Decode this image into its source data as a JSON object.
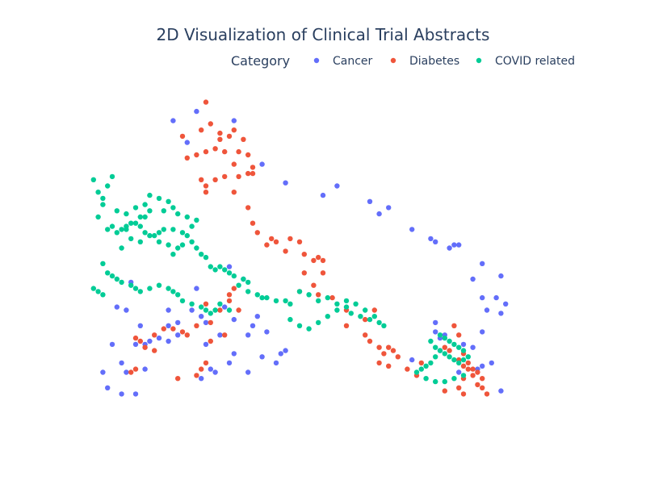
{
  "chart_data": {
    "type": "scatter",
    "title": "2D Visualization of Clinical Trial Abstracts",
    "legend": {
      "title": "Category",
      "placement": "top-right",
      "orientation": "horizontal"
    },
    "grid": false,
    "axes_visible": false,
    "xlim": [
      0,
      100
    ],
    "ylim": [
      0,
      100
    ],
    "series": [
      {
        "name": "Cancer",
        "color": "#636efa",
        "points": [
          [
            23,
            94
          ],
          [
            18,
            91
          ],
          [
            31,
            91
          ],
          [
            21,
            84
          ],
          [
            37,
            77
          ],
          [
            53,
            70
          ],
          [
            42,
            71
          ],
          [
            50,
            67
          ],
          [
            60,
            65
          ],
          [
            64,
            63
          ],
          [
            62,
            61
          ],
          [
            69,
            56
          ],
          [
            73,
            53
          ],
          [
            74,
            52
          ],
          [
            77,
            50
          ],
          [
            79,
            51
          ],
          [
            78,
            51
          ],
          [
            84,
            45
          ],
          [
            82,
            40
          ],
          [
            88,
            41
          ],
          [
            84,
            34
          ],
          [
            87,
            34
          ],
          [
            89,
            32
          ],
          [
            85,
            30
          ],
          [
            88,
            29
          ],
          [
            84,
            23
          ],
          [
            9,
            39
          ],
          [
            6,
            31
          ],
          [
            8,
            30
          ],
          [
            11,
            25
          ],
          [
            10,
            19
          ],
          [
            5,
            19
          ],
          [
            3,
            10
          ],
          [
            4,
            5
          ],
          [
            7,
            3
          ],
          [
            10,
            3
          ],
          [
            12,
            11
          ],
          [
            7,
            13
          ],
          [
            8,
            10
          ],
          [
            12,
            19
          ],
          [
            13,
            20
          ],
          [
            15,
            21
          ],
          [
            17,
            20
          ],
          [
            19,
            22
          ],
          [
            17,
            25
          ],
          [
            19,
            26
          ],
          [
            24,
            28
          ],
          [
            25,
            26
          ],
          [
            17,
            30
          ],
          [
            30,
            44
          ],
          [
            33,
            40
          ],
          [
            23,
            37
          ],
          [
            22,
            30
          ],
          [
            29,
            31
          ],
          [
            31,
            27
          ],
          [
            36,
            28
          ],
          [
            28,
            22
          ],
          [
            34,
            22
          ],
          [
            35,
            25
          ],
          [
            38,
            23
          ],
          [
            25,
            19
          ],
          [
            31,
            16
          ],
          [
            37,
            15
          ],
          [
            40,
            13
          ],
          [
            41,
            16
          ],
          [
            42,
            17
          ],
          [
            30,
            13
          ],
          [
            34,
            10
          ],
          [
            24,
            8
          ],
          [
            26,
            11
          ],
          [
            27,
            10
          ],
          [
            69,
            14
          ],
          [
            74,
            23
          ],
          [
            75,
            21
          ],
          [
            75,
            17
          ],
          [
            74,
            26
          ],
          [
            76,
            22
          ],
          [
            79,
            10
          ],
          [
            80,
            19
          ],
          [
            82,
            18
          ],
          [
            84,
            12
          ],
          [
            83,
            11
          ],
          [
            86,
            13
          ],
          [
            88,
            4
          ]
        ]
      },
      {
        "name": "Diabetes",
        "color": "#ef553b",
        "points": [
          [
            25,
            97
          ],
          [
            26,
            90
          ],
          [
            24,
            88
          ],
          [
            20,
            86
          ],
          [
            28,
            87
          ],
          [
            31,
            88
          ],
          [
            30,
            86
          ],
          [
            28,
            85
          ],
          [
            29,
            81
          ],
          [
            27,
            82
          ],
          [
            21,
            79
          ],
          [
            23,
            80
          ],
          [
            25,
            81
          ],
          [
            33,
            85
          ],
          [
            32,
            81
          ],
          [
            34,
            80
          ],
          [
            31,
            77
          ],
          [
            35,
            76
          ],
          [
            34,
            74
          ],
          [
            32,
            73
          ],
          [
            35,
            74
          ],
          [
            29,
            73
          ],
          [
            27,
            72
          ],
          [
            24,
            72
          ],
          [
            25,
            68
          ],
          [
            25,
            70
          ],
          [
            31,
            68
          ],
          [
            34,
            63
          ],
          [
            35,
            58
          ],
          [
            36,
            55
          ],
          [
            39,
            53
          ],
          [
            40,
            52
          ],
          [
            38,
            51
          ],
          [
            43,
            53
          ],
          [
            45,
            52
          ],
          [
            42,
            49
          ],
          [
            46,
            48
          ],
          [
            49,
            47
          ],
          [
            50,
            46
          ],
          [
            48,
            46
          ],
          [
            50,
            42
          ],
          [
            46,
            42
          ],
          [
            48,
            38
          ],
          [
            45,
            36
          ],
          [
            49,
            35
          ],
          [
            52,
            34
          ],
          [
            55,
            30
          ],
          [
            55,
            25
          ],
          [
            59,
            27
          ],
          [
            61,
            30
          ],
          [
            59,
            22
          ],
          [
            60,
            20
          ],
          [
            62,
            18
          ],
          [
            64,
            18
          ],
          [
            65,
            17
          ],
          [
            63,
            16
          ],
          [
            66,
            15
          ],
          [
            62,
            13
          ],
          [
            64,
            12
          ],
          [
            68,
            11
          ],
          [
            70,
            9
          ],
          [
            71,
            13
          ],
          [
            25,
            32
          ],
          [
            30,
            35
          ],
          [
            31,
            37
          ],
          [
            30,
            33
          ],
          [
            32,
            30
          ],
          [
            28,
            30
          ],
          [
            26,
            26
          ],
          [
            23,
            25
          ],
          [
            21,
            22
          ],
          [
            20,
            23
          ],
          [
            18,
            24
          ],
          [
            14,
            17
          ],
          [
            12,
            18
          ],
          [
            11,
            20
          ],
          [
            10,
            21
          ],
          [
            14,
            22
          ],
          [
            16,
            24
          ],
          [
            26,
            20
          ],
          [
            29,
            22
          ],
          [
            25,
            13
          ],
          [
            24,
            11
          ],
          [
            23,
            9
          ],
          [
            19,
            8
          ],
          [
            9,
            10
          ],
          [
            10,
            11
          ],
          [
            78,
            25
          ],
          [
            79,
            22
          ],
          [
            76,
            18
          ],
          [
            77,
            17
          ],
          [
            80,
            16
          ],
          [
            79,
            14
          ],
          [
            81,
            13
          ],
          [
            81,
            11
          ],
          [
            80,
            12
          ],
          [
            82,
            11
          ],
          [
            83,
            10
          ],
          [
            82,
            9
          ],
          [
            84,
            8
          ],
          [
            80,
            8
          ],
          [
            83,
            6
          ],
          [
            84,
            5
          ],
          [
            79,
            5
          ],
          [
            80,
            3
          ],
          [
            76,
            4
          ],
          [
            85,
            3
          ]
        ]
      },
      {
        "name": "COVID related",
        "color": "#00cc96",
        "points": [
          [
            1,
            72
          ],
          [
            2,
            68
          ],
          [
            4,
            70
          ],
          [
            5,
            73
          ],
          [
            3,
            66
          ],
          [
            3,
            64
          ],
          [
            2,
            60
          ],
          [
            6,
            62
          ],
          [
            8,
            61
          ],
          [
            10,
            63
          ],
          [
            12,
            64
          ],
          [
            13,
            67
          ],
          [
            15,
            66
          ],
          [
            17,
            65
          ],
          [
            18,
            63
          ],
          [
            12,
            60
          ],
          [
            8,
            56
          ],
          [
            9,
            53
          ],
          [
            7,
            50
          ],
          [
            11,
            52
          ],
          [
            13,
            54
          ],
          [
            15,
            52
          ],
          [
            17,
            51
          ],
          [
            18,
            48
          ],
          [
            19,
            50
          ],
          [
            20,
            51
          ],
          [
            21,
            54
          ],
          [
            22,
            52
          ],
          [
            23,
            50
          ],
          [
            24,
            48
          ],
          [
            25,
            47
          ],
          [
            26,
            44
          ],
          [
            27,
            43
          ],
          [
            28,
            44
          ],
          [
            29,
            43
          ],
          [
            30,
            42
          ],
          [
            31,
            41
          ],
          [
            33,
            40
          ],
          [
            34,
            39
          ],
          [
            32,
            38
          ],
          [
            34,
            36
          ],
          [
            36,
            35
          ],
          [
            37,
            34
          ],
          [
            38,
            34
          ],
          [
            40,
            33
          ],
          [
            42,
            33
          ],
          [
            43,
            32
          ],
          [
            4,
            56
          ],
          [
            5,
            57
          ],
          [
            6,
            55
          ],
          [
            7,
            56
          ],
          [
            8,
            57
          ],
          [
            9,
            58
          ],
          [
            10,
            58
          ],
          [
            11,
            57
          ],
          [
            12,
            55
          ],
          [
            14,
            54
          ],
          [
            15,
            55
          ],
          [
            16,
            56
          ],
          [
            18,
            56
          ],
          [
            20,
            55
          ],
          [
            22,
            57
          ],
          [
            23,
            59
          ],
          [
            21,
            60
          ],
          [
            19,
            61
          ],
          [
            16,
            62
          ],
          [
            13,
            62
          ],
          [
            11,
            60
          ],
          [
            3,
            45
          ],
          [
            4,
            42
          ],
          [
            5,
            41
          ],
          [
            6,
            40
          ],
          [
            7,
            39
          ],
          [
            9,
            38
          ],
          [
            10,
            37
          ],
          [
            11,
            36
          ],
          [
            13,
            37
          ],
          [
            15,
            38
          ],
          [
            17,
            37
          ],
          [
            18,
            36
          ],
          [
            19,
            35
          ],
          [
            20,
            33
          ],
          [
            22,
            32
          ],
          [
            24,
            31
          ],
          [
            25,
            30
          ],
          [
            26,
            29
          ],
          [
            27,
            30
          ],
          [
            28,
            32
          ],
          [
            30,
            30
          ],
          [
            1,
            37
          ],
          [
            2,
            36
          ],
          [
            3,
            35
          ],
          [
            45,
            36
          ],
          [
            47,
            35
          ],
          [
            49,
            33
          ],
          [
            51,
            34
          ],
          [
            53,
            32
          ],
          [
            55,
            31
          ],
          [
            56,
            29
          ],
          [
            58,
            28
          ],
          [
            60,
            27
          ],
          [
            62,
            26
          ],
          [
            63,
            25
          ],
          [
            61,
            28
          ],
          [
            59,
            30
          ],
          [
            57,
            32
          ],
          [
            55,
            33
          ],
          [
            53,
            30
          ],
          [
            51,
            28
          ],
          [
            49,
            26
          ],
          [
            47,
            24
          ],
          [
            45,
            25
          ],
          [
            43,
            27
          ],
          [
            73,
            20
          ],
          [
            74,
            18
          ],
          [
            75,
            17
          ],
          [
            76,
            16
          ],
          [
            77,
            15
          ],
          [
            78,
            14
          ],
          [
            79,
            13
          ],
          [
            80,
            14
          ],
          [
            81,
            15
          ],
          [
            80,
            17
          ],
          [
            79,
            18
          ],
          [
            78,
            19
          ],
          [
            77,
            20
          ],
          [
            76,
            21
          ],
          [
            75,
            22
          ],
          [
            74,
            15
          ],
          [
            73,
            13
          ],
          [
            72,
            12
          ],
          [
            71,
            11
          ],
          [
            70,
            10
          ],
          [
            72,
            8
          ],
          [
            74,
            7
          ],
          [
            76,
            7
          ],
          [
            78,
            8
          ],
          [
            80,
            9
          ]
        ]
      }
    ]
  }
}
